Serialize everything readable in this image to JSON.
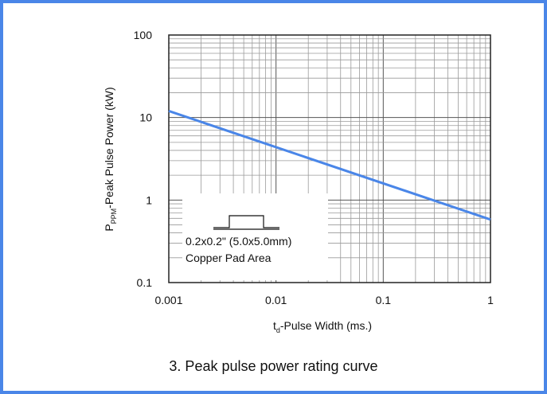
{
  "chart_data": {
    "type": "line",
    "title": "3. Peak pulse power rating curve",
    "xlabel": {
      "main": "t",
      "sub": "d",
      "rest": "-Pulse Width (ms.)"
    },
    "ylabel": {
      "main": "P",
      "sub": "PPM",
      "rest": "-Peak Pulse Power (kW)"
    },
    "x_scale": "log",
    "y_scale": "log",
    "xlim": [
      0.001,
      1
    ],
    "ylim": [
      0.1,
      100
    ],
    "x_ticks": [
      "0.001",
      "0.01",
      "0.1",
      "1"
    ],
    "y_ticks": [
      "0.1",
      "1",
      "10",
      "100"
    ],
    "grid": true,
    "series": [
      {
        "color": "#4a86e8",
        "x": [
          0.001,
          1
        ],
        "y": [
          12,
          0.58
        ]
      }
    ],
    "inset": {
      "line1": "0.2x0.2\" (5.0x5.0mm)",
      "line2": "Copper Pad Area",
      "icon": "pad-package-icon"
    }
  }
}
